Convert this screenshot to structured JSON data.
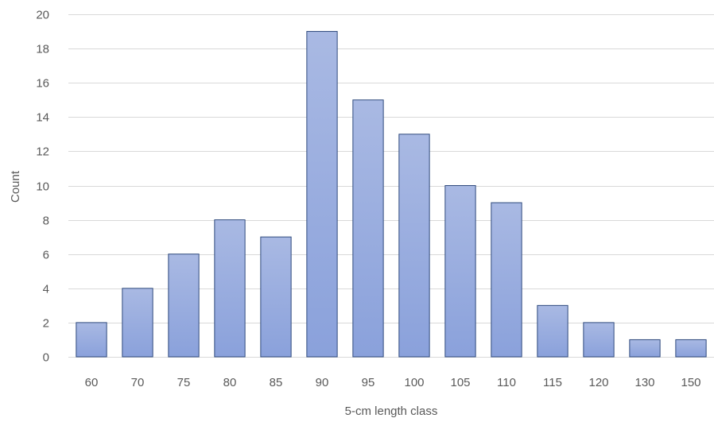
{
  "chart_data": {
    "type": "bar",
    "categories": [
      "60",
      "70",
      "75",
      "80",
      "85",
      "90",
      "95",
      "100",
      "105",
      "110",
      "115",
      "120",
      "130",
      "150"
    ],
    "values": [
      2,
      4,
      6,
      8,
      7,
      19,
      15,
      13,
      10,
      9,
      3,
      2,
      1,
      1
    ],
    "title": "",
    "xlabel": "5-cm length class",
    "ylabel": "Count",
    "ylim": [
      0,
      20
    ],
    "ytick_step": 2,
    "grid": true,
    "legend": "none"
  },
  "colors": {
    "bar_fill_top": "#a9b9e3",
    "bar_fill_bottom": "#8aa1db",
    "bar_stroke": "#2f4a7d",
    "gridline": "#d9d9d9",
    "text": "#595959"
  }
}
